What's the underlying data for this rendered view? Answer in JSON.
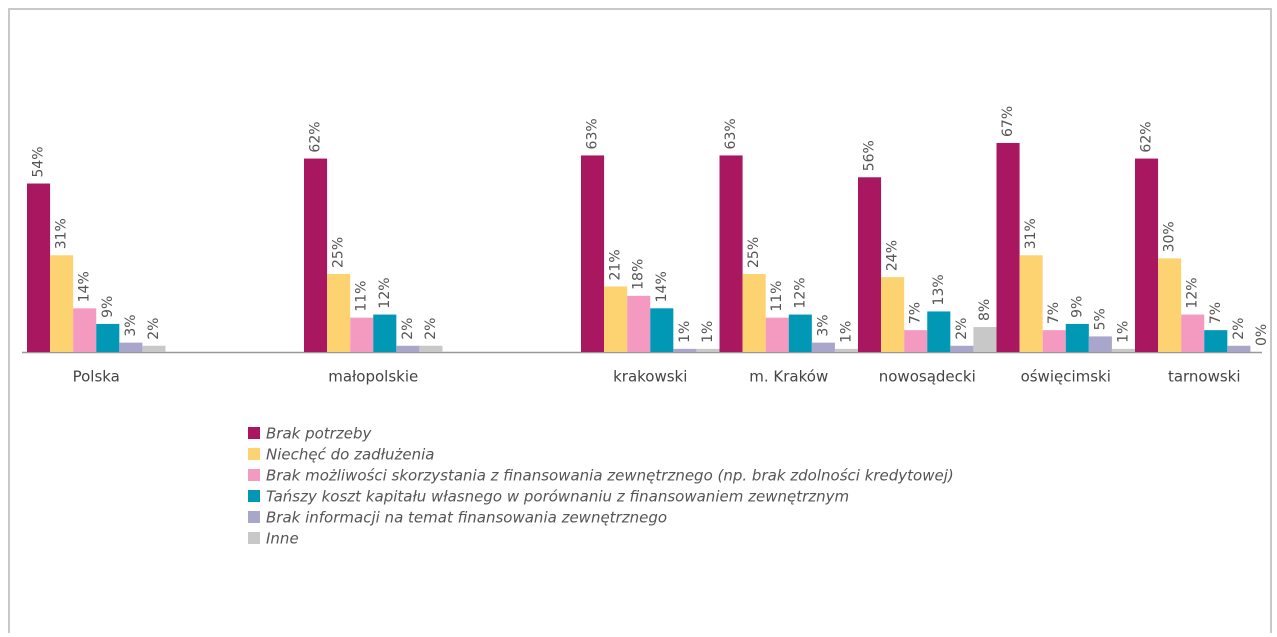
{
  "chart_data": {
    "type": "bar",
    "categories": [
      "Polska",
      null,
      "małopolskie",
      null,
      "krakowski",
      "m. Kraków",
      "nowosądecki",
      "oświęcimski",
      "tarnowski"
    ],
    "series": [
      {
        "name": "Brak potrzeby",
        "color": "#a8175f",
        "values": [
          54,
          null,
          62,
          null,
          63,
          63,
          56,
          67,
          62
        ],
        "value_labels": [
          "54%",
          null,
          "62%",
          null,
          "63%",
          "63%",
          "56%",
          "67%",
          "62%"
        ]
      },
      {
        "name": "Niechęć do zadłużenia",
        "color": "#fdd372",
        "values": [
          31,
          null,
          25,
          null,
          21,
          25,
          24,
          31,
          30
        ],
        "value_labels": [
          "31%",
          null,
          "25%",
          null,
          "21%",
          "25%",
          "24%",
          "31%",
          "30%"
        ]
      },
      {
        "name": "Brak możliwości skorzystania z finansowania zewnętrznego (np. brak zdolności kredytowej)",
        "color": "#f49ac1",
        "values": [
          14,
          null,
          11,
          null,
          18,
          11,
          7,
          7,
          12
        ],
        "value_labels": [
          "14%",
          null,
          "11%",
          null,
          "18%",
          "11%",
          "7%",
          "7%",
          "12%"
        ]
      },
      {
        "name": "Tańszy koszt kapitału własnego w porównaniu z finansowaniem zewnętrznym",
        "color": "#0098b5",
        "values": [
          9,
          null,
          12,
          null,
          14,
          12,
          13,
          9,
          7
        ],
        "value_labels": [
          "9%",
          null,
          "12%",
          null,
          "14%",
          "12%",
          "13%",
          "9%",
          "7%"
        ]
      },
      {
        "name": "Brak informacji na temat finansowania zewnętrznego",
        "color": "#a9a6cc",
        "values": [
          3,
          null,
          2,
          null,
          1,
          3,
          2,
          5,
          2
        ],
        "value_labels": [
          "3%",
          null,
          "2%",
          null,
          "1%",
          "3%",
          "2%",
          "5%",
          "2%"
        ]
      },
      {
        "name": "Inne",
        "color": "#c8c8c8",
        "values": [
          2,
          null,
          2,
          null,
          1,
          1,
          8,
          1,
          0
        ],
        "value_labels": [
          "2%",
          null,
          "2%",
          null,
          "1%",
          "1%",
          "8%",
          "1%",
          "0%"
        ]
      }
    ]
  }
}
